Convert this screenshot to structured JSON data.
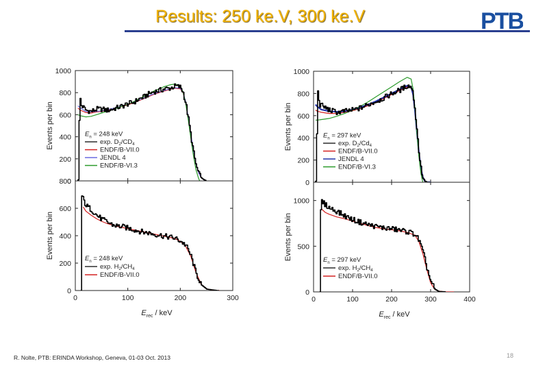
{
  "slide": {
    "title": "Results: 250 ke.V, 300 ke.V",
    "logo_text": "PTB",
    "footer": "R. Nolte, PTB: ERINDA Workshop, Geneva, 01-03 Oct. 2013",
    "page_number": "18"
  },
  "colors": {
    "title": "#f2b300",
    "rule": "#2a3f8f",
    "logo": "#1a4fa0",
    "exp": "#000000",
    "endf7": "#d42020",
    "jendl": "#2233aa",
    "jendl_left": "#6a6ae0",
    "endf6": "#2a9a2a"
  },
  "chart_data": [
    {
      "type": "line",
      "panel": "top-left",
      "ylabel": "Events per bin",
      "ylim": [
        0,
        1000
      ],
      "yticks": [
        "0",
        "200",
        "400",
        "600",
        "800",
        "1000"
      ],
      "xlim": [
        0,
        300
      ],
      "legend": {
        "placement": "bottom-left",
        "header": "E_n = 248 keV",
        "entries": [
          "exp. D2/CD4",
          "ENDF/B-VII.0",
          "JENDL 4",
          "ENDF/B-VI.3"
        ]
      },
      "series": [
        {
          "name": "exp. D2/CD4",
          "x": [
            5,
            8,
            10,
            20,
            30,
            40,
            50,
            60,
            70,
            80,
            90,
            100,
            110,
            120,
            130,
            140,
            150,
            160,
            170,
            180,
            190,
            200,
            205,
            210,
            215,
            220,
            225,
            230,
            235,
            240,
            245,
            250
          ],
          "y": [
            10,
            800,
            690,
            640,
            630,
            650,
            650,
            640,
            650,
            665,
            680,
            700,
            710,
            740,
            760,
            790,
            810,
            820,
            835,
            840,
            860,
            850,
            800,
            700,
            560,
            400,
            250,
            130,
            60,
            25,
            10,
            0
          ]
        },
        {
          "name": "ENDF/B-VII.0",
          "x": [
            5,
            10,
            20,
            30,
            40,
            50,
            60,
            70,
            80,
            90,
            100,
            110,
            120,
            130,
            140,
            150,
            160,
            170,
            180,
            190,
            200,
            205,
            210,
            215,
            220,
            225,
            230,
            235,
            240,
            245,
            250
          ],
          "y": [
            660,
            640,
            620,
            615,
            625,
            630,
            640,
            650,
            660,
            675,
            690,
            705,
            725,
            745,
            765,
            785,
            800,
            815,
            830,
            840,
            835,
            800,
            720,
            580,
            420,
            270,
            150,
            70,
            30,
            10,
            0
          ]
        },
        {
          "name": "JENDL 4",
          "x": [
            5,
            10,
            20,
            30,
            40,
            50,
            60,
            70,
            80,
            90,
            100,
            110,
            120,
            130,
            140,
            150,
            160,
            170,
            180,
            190,
            200,
            205,
            210,
            215,
            220,
            225,
            230,
            235,
            240,
            245,
            250
          ],
          "y": [
            680,
            660,
            630,
            625,
            630,
            635,
            645,
            655,
            665,
            680,
            695,
            710,
            730,
            750,
            770,
            790,
            805,
            820,
            835,
            845,
            840,
            805,
            725,
            585,
            425,
            275,
            150,
            70,
            30,
            10,
            0
          ]
        },
        {
          "name": "ENDF/B-VI.3",
          "x": [
            5,
            10,
            20,
            30,
            40,
            50,
            60,
            70,
            80,
            90,
            100,
            110,
            120,
            130,
            140,
            150,
            160,
            170,
            180,
            190,
            200,
            205,
            210,
            215,
            220,
            225,
            230,
            235,
            240,
            245,
            250
          ],
          "y": [
            600,
            590,
            580,
            585,
            600,
            615,
            630,
            645,
            660,
            678,
            695,
            715,
            740,
            765,
            790,
            815,
            835,
            855,
            870,
            878,
            860,
            810,
            710,
            560,
            390,
            230,
            100,
            20,
            -30,
            -20,
            0
          ]
        }
      ]
    },
    {
      "type": "line",
      "panel": "bottom-left",
      "xlabel": "E_rec / keV",
      "ylabel": "Events per bin",
      "xlim": [
        0,
        300
      ],
      "xticks": [
        "0",
        "100",
        "200",
        "300"
      ],
      "ylim": [
        0,
        800
      ],
      "yticks": [
        "0",
        "200",
        "400",
        "600",
        "800"
      ],
      "legend": {
        "placement": "bottom-left",
        "header": "E_n = 248 keV",
        "entries": [
          "exp. H2/CH4",
          "ENDF/B-VII.0"
        ]
      },
      "series": [
        {
          "name": "exp. H2/CH4",
          "x": [
            10,
            12,
            15,
            20,
            30,
            40,
            50,
            60,
            70,
            80,
            90,
            100,
            110,
            120,
            130,
            140,
            150,
            160,
            170,
            180,
            190,
            200,
            210,
            220,
            230,
            240,
            250,
            260,
            270,
            275
          ],
          "y": [
            0,
            690,
            660,
            620,
            590,
            550,
            520,
            500,
            480,
            470,
            465,
            455,
            445,
            435,
            425,
            420,
            410,
            405,
            395,
            390,
            380,
            360,
            330,
            250,
            120,
            40,
            10,
            5,
            0,
            0
          ]
        },
        {
          "name": "ENDF/B-VII.0",
          "x": [
            15,
            20,
            30,
            40,
            50,
            60,
            70,
            80,
            90,
            100,
            110,
            120,
            130,
            140,
            150,
            160,
            170,
            180,
            190,
            200,
            210,
            220,
            230,
            240,
            250,
            260,
            270,
            275
          ],
          "y": [
            610,
            580,
            550,
            525,
            505,
            490,
            478,
            468,
            460,
            452,
            444,
            436,
            428,
            420,
            412,
            404,
            396,
            388,
            378,
            360,
            325,
            250,
            130,
            45,
            12,
            4,
            0,
            0
          ]
        }
      ]
    },
    {
      "type": "line",
      "panel": "top-right",
      "ylabel": "Events per bin",
      "ylim": [
        0,
        1000
      ],
      "yticks": [
        "0",
        "200",
        "400",
        "600",
        "800",
        "1000"
      ],
      "xlim": [
        0,
        400
      ],
      "legend": {
        "placement": "bottom-left",
        "header": "E_n = 297 keV",
        "entries": [
          "exp. D2/Cd4",
          "ENDF/B-VII.0",
          "JENDL 4",
          "ENDF/B-VI.3"
        ]
      },
      "series": [
        {
          "name": "exp. D2/Cd4",
          "x": [
            5,
            10,
            15,
            25,
            40,
            60,
            80,
            100,
            120,
            140,
            160,
            180,
            200,
            220,
            240,
            250,
            255,
            260,
            265,
            270,
            275,
            280,
            285,
            290,
            300
          ],
          "y": [
            10,
            820,
            700,
            680,
            650,
            630,
            640,
            650,
            670,
            700,
            730,
            760,
            800,
            830,
            870,
            860,
            780,
            620,
            430,
            250,
            110,
            40,
            10,
            0,
            0
          ]
        },
        {
          "name": "ENDF/B-VII.0",
          "x": [
            5,
            10,
            20,
            40,
            60,
            80,
            100,
            120,
            140,
            160,
            180,
            200,
            220,
            240,
            250,
            255,
            260,
            265,
            270,
            275,
            280,
            285,
            290,
            300
          ],
          "y": [
            650,
            640,
            630,
            620,
            620,
            630,
            645,
            665,
            690,
            720,
            755,
            790,
            825,
            860,
            850,
            780,
            630,
            440,
            260,
            120,
            45,
            12,
            2,
            0
          ]
        },
        {
          "name": "JENDL 4",
          "x": [
            5,
            10,
            20,
            40,
            60,
            80,
            100,
            120,
            140,
            160,
            180,
            200,
            220,
            240,
            250,
            255,
            260,
            265,
            270,
            275,
            280,
            285,
            290,
            300
          ],
          "y": [
            700,
            680,
            655,
            640,
            635,
            640,
            655,
            675,
            700,
            730,
            765,
            800,
            835,
            870,
            860,
            790,
            640,
            450,
            265,
            125,
            45,
            12,
            2,
            0
          ]
        },
        {
          "name": "ENDF/B-VI.3",
          "x": [
            5,
            10,
            20,
            40,
            60,
            80,
            100,
            120,
            140,
            160,
            180,
            200,
            220,
            240,
            250,
            255,
            260,
            265,
            270,
            275,
            280,
            285,
            290,
            300,
            310
          ],
          "y": [
            560,
            560,
            565,
            575,
            595,
            620,
            650,
            685,
            725,
            770,
            815,
            860,
            905,
            945,
            930,
            840,
            660,
            440,
            230,
            80,
            0,
            -40,
            -30,
            -10,
            0
          ]
        }
      ]
    },
    {
      "type": "line",
      "panel": "bottom-right",
      "xlabel": "E_rec / keV",
      "ylabel": "Events per bin",
      "xlim": [
        0,
        400
      ],
      "xticks": [
        "0",
        "100",
        "200",
        "300",
        "400"
      ],
      "ylim": [
        0,
        1200
      ],
      "yticks": [
        "0",
        "500",
        "1000"
      ],
      "legend": {
        "placement": "bottom-left",
        "header": "E_n = 297 keV",
        "entries": [
          "exp. H2/CH4",
          "ENDF/B-VII.0"
        ]
      },
      "series": [
        {
          "name": "exp. H2/CH4",
          "x": [
            15,
            18,
            25,
            40,
            60,
            80,
            100,
            120,
            140,
            160,
            180,
            200,
            220,
            240,
            260,
            270,
            280,
            290,
            300,
            310,
            320,
            340
          ],
          "y": [
            0,
            1000,
            970,
            920,
            880,
            830,
            790,
            760,
            735,
            715,
            700,
            690,
            675,
            660,
            630,
            560,
            430,
            260,
            110,
            30,
            5,
            0
          ]
        },
        {
          "name": "ENDF/B-VII.0",
          "x": [
            20,
            30,
            40,
            60,
            80,
            100,
            120,
            140,
            160,
            180,
            200,
            220,
            240,
            260,
            270,
            280,
            290,
            300,
            310,
            320,
            340,
            360
          ],
          "y": [
            910,
            870,
            850,
            820,
            800,
            775,
            750,
            725,
            705,
            690,
            680,
            668,
            652,
            620,
            550,
            420,
            250,
            100,
            30,
            8,
            0,
            0
          ]
        }
      ]
    }
  ]
}
